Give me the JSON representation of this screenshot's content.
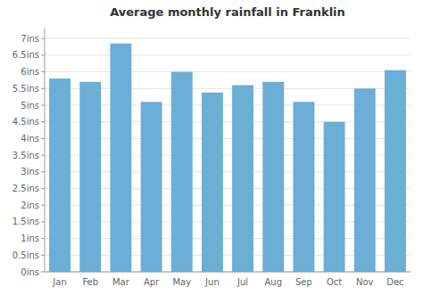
{
  "chart_data": {
    "type": "bar",
    "title": "Average monthly rainfall in Franklin",
    "categories": [
      "Jan",
      "Feb",
      "Mar",
      "Apr",
      "May",
      "Jun",
      "Jul",
      "Aug",
      "Sep",
      "Oct",
      "Nov",
      "Dec"
    ],
    "values": [
      5.8,
      5.7,
      6.85,
      5.1,
      6.0,
      5.38,
      5.6,
      5.7,
      5.1,
      4.5,
      5.5,
      6.05
    ],
    "color": "#6baed6",
    "ylim": [
      0,
      7.3
    ],
    "yticks": [
      {
        "value": 0,
        "label": "0ins"
      },
      {
        "value": 0.5,
        "label": "0.5ins"
      },
      {
        "value": 1.0,
        "label": "1ins"
      },
      {
        "value": 1.5,
        "label": "1.5ins"
      },
      {
        "value": 2.0,
        "label": "2ins"
      },
      {
        "value": 2.5,
        "label": "2.5ins"
      },
      {
        "value": 3.0,
        "label": "3ins"
      },
      {
        "value": 3.5,
        "label": "3.5ins"
      },
      {
        "value": 4.0,
        "label": "4ins"
      },
      {
        "value": 4.5,
        "label": "4.5ins"
      },
      {
        "value": 5.0,
        "label": "5ins"
      },
      {
        "value": 5.5,
        "label": "5.5ins"
      },
      {
        "value": 6.0,
        "label": "6ins"
      },
      {
        "value": 6.5,
        "label": "6.5ins"
      },
      {
        "value": 7.0,
        "label": "7ins"
      }
    ],
    "grid": true
  }
}
